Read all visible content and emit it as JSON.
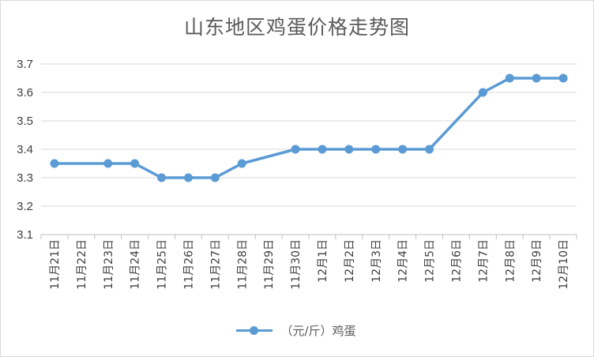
{
  "chart_data": {
    "type": "line",
    "title": "山东地区鸡蛋价格走势图",
    "categories": [
      "11月21日",
      "11月22日",
      "11月23日",
      "11月24日",
      "11月25日",
      "11月26日",
      "11月27日",
      "11月28日",
      "11月29日",
      "11月30日",
      "12月1日",
      "12月2日",
      "12月3日",
      "12月4日",
      "12月5日",
      "12月6日",
      "12月7日",
      "12月8日",
      "12月9日",
      "12月10日"
    ],
    "series": [
      {
        "name": "（元/斤）鸡蛋",
        "color": "#5b9bd5",
        "values": [
          3.35,
          null,
          3.35,
          3.35,
          3.3,
          3.3,
          3.3,
          3.35,
          null,
          3.4,
          3.4,
          3.4,
          3.4,
          3.4,
          3.4,
          null,
          3.6,
          3.65,
          3.65,
          3.65
        ]
      }
    ],
    "ylim": [
      3.1,
      3.7
    ],
    "yticks": [
      "3.1",
      "3.2",
      "3.3",
      "3.4",
      "3.5",
      "3.6",
      "3.7"
    ],
    "xlabel": "",
    "ylabel": "",
    "grid": true,
    "legend": "bottom"
  }
}
